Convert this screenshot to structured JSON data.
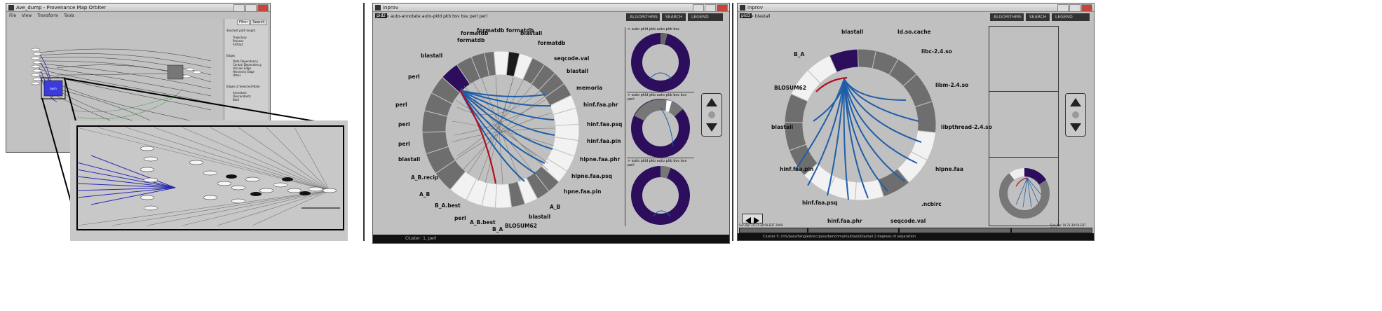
{
  "panel_a": {
    "title": "Ave_dump - Provenance Map Orbiter",
    "menus": [
      "File",
      "View",
      "Transform",
      "Tools"
    ],
    "tabs": [
      "Filter",
      "Search"
    ],
    "side_texts": [
      "Shortest path length",
      "Trajectory",
      "Process",
      "Artifact",
      "Edges",
      "Data Dependency",
      "Control Dependency",
      "Version Edge",
      "Hierarchy Edge",
      "Other",
      "Edges of Selected Node",
      "Ancestors",
      "Descendants",
      "Both"
    ],
    "node_label": "bash"
  },
  "panel_b": {
    "title": "inprov",
    "breadcrumb": "> auto-annotate auto-pkld pkb bsv bsv perl perl",
    "badge": "pid2",
    "tabs": [
      "ALGORITHMS",
      "SEARCH",
      "LEGEND"
    ],
    "labels": [
      "formatdb",
      "formatdb",
      "formatdb formatdb",
      "blastall",
      "blastall",
      "formatdb",
      "seqcode.val",
      "blastall",
      "memoria",
      "hinf.faa.phr",
      "hinf.faa.psq",
      "hinf.faa.pin",
      "hlpne.faa.phr",
      "hlpne.faa.psq",
      "hpne.faa.pin",
      "A_B",
      "blastall",
      "BLOSUM62",
      "B_A",
      "A_B.best",
      "perl",
      "B_A.best",
      "A_B",
      "A_B.recip",
      "blastall",
      "perl",
      "perl",
      "perl",
      "perl"
    ],
    "thumb_titles": [
      "> auto pkld pkb auto pkb bsv",
      "> auto pkld pkb auto pkb bsv bsv perl",
      "> auto pkld pkb auto pkb bsv bsv perl"
    ],
    "status": "Cluster: 1, perl"
  },
  "panel_c": {
    "title": "inprov",
    "breadcrumb": "> blastall",
    "badge": "pid3",
    "tabs": [
      "ALGORITHMS",
      "SEARCH",
      "LEGEND"
    ],
    "labels": [
      "blastall",
      "ld.so.cache",
      "libc-2.4.so",
      "libm-2.4.so",
      "libpthread-2.4.so",
      "hlpne.faa",
      ".ncbirc",
      "seqcode.val",
      "hinf.faa.phr",
      "hinf.faa.psq",
      "hinf.faa.pin",
      "blastall",
      "BLOSUM62",
      "B_A"
    ],
    "time_left": "Sun Apr 19 21:38:59 EDT 2009",
    "time_right": "Sun Apr 19 21:38:59 EDT 2009",
    "status": "Cluster 5: /nfs/pass/tangled/src/pass/benchmarks/blast/blastall 2 degrees of separation"
  }
}
